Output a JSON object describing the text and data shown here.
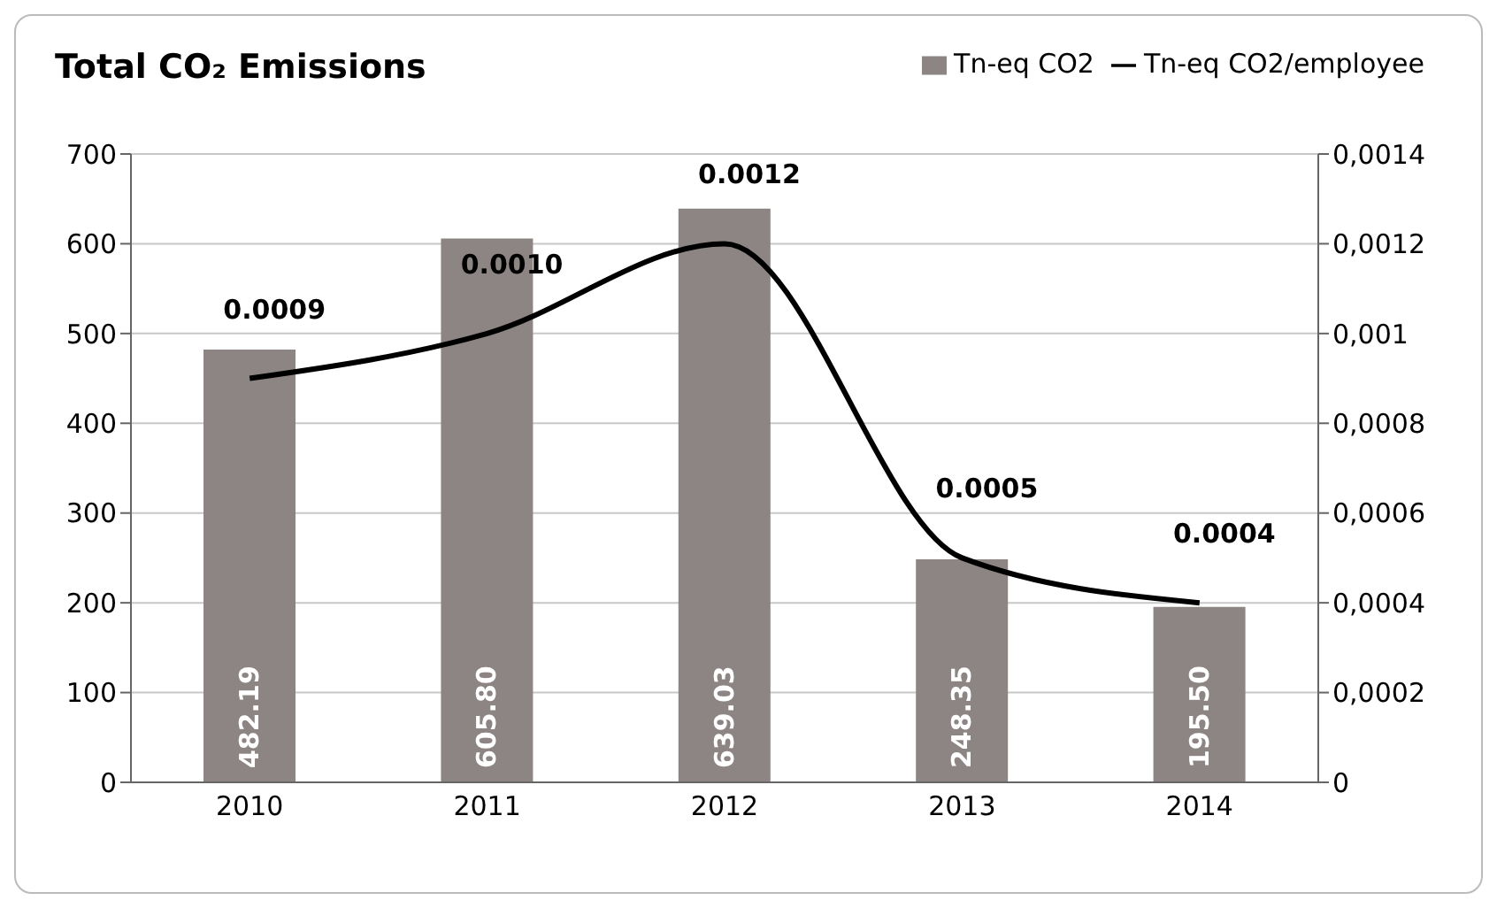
{
  "chart_data": {
    "type": "bar",
    "title": "Total CO₂ Emissions",
    "categories": [
      "2010",
      "2011",
      "2012",
      "2013",
      "2014"
    ],
    "series": [
      {
        "name": "Tn-eq CO2",
        "color": "#8c8583",
        "values": [
          482.19,
          605.8,
          639.03,
          248.35,
          195.5
        ],
        "value_labels": [
          "482.19",
          "605.80",
          "639.03",
          "248.35",
          "195.50"
        ]
      },
      {
        "name": "Tn-eq CO2/employee",
        "type": "line",
        "axis": "y2",
        "color": "#000000",
        "values": [
          0.0009,
          0.001,
          0.0012,
          0.0005,
          0.0004
        ],
        "value_labels": [
          "0.0009",
          "0.0010",
          "0.0012",
          "0.0005",
          "0.0004"
        ]
      }
    ],
    "ylim": [
      0,
      700
    ],
    "yticks": [
      0,
      100,
      200,
      300,
      400,
      500,
      600,
      700
    ],
    "y2lim": [
      0,
      0.0014
    ],
    "y2ticks": [
      0,
      {
        "value": 0.0002,
        "label": "0,0002"
      },
      {
        "value": 0.0004,
        "label": "0,0004"
      },
      {
        "value": 0.0006,
        "label": "0,0006"
      },
      {
        "value": 0.0008,
        "label": "0,0008"
      },
      {
        "value": 0.001,
        "label": "0,001"
      },
      {
        "value": 0.0012,
        "label": "0,0012"
      },
      {
        "value": 0.0014,
        "label": "0,0014"
      }
    ],
    "grid": "y",
    "legend": "top right",
    "marker": "none",
    "line_style": "solid"
  }
}
